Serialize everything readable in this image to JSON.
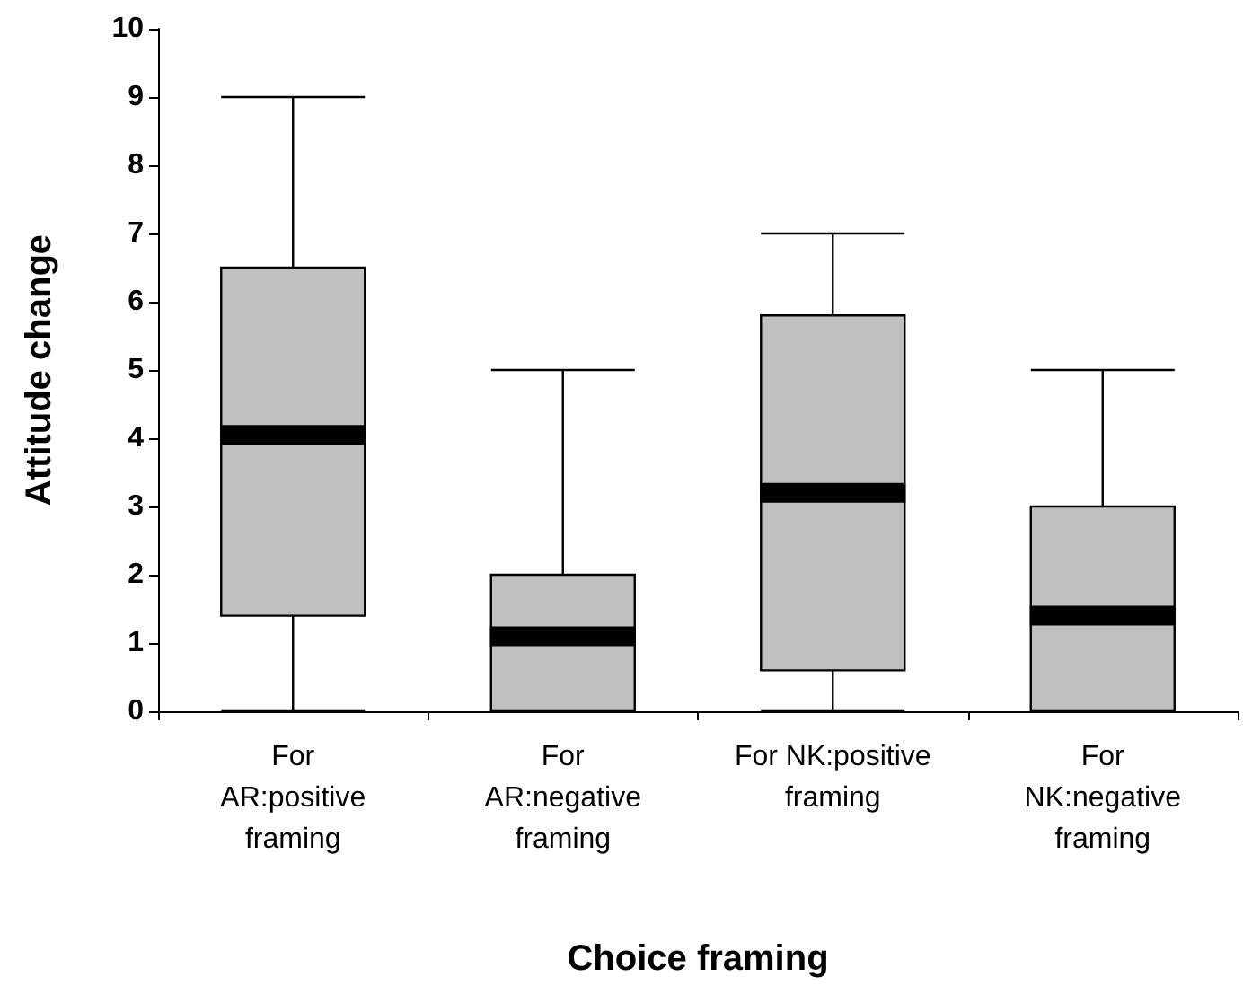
{
  "chart_data": {
    "type": "box",
    "xlabel": "Choice framing",
    "ylabel": "Attitude change",
    "categories": [
      "For\nAR:positive\nframing",
      "For\nAR:negative\nframing",
      "For NK:positive\nframing",
      "For\nNK:negative\nframing"
    ],
    "boxes": [
      {
        "low": 0,
        "q1": 1.4,
        "median": 4.05,
        "q3": 6.5,
        "high": 9
      },
      {
        "low": 0,
        "q1": 0,
        "median": 1.1,
        "q3": 2,
        "high": 5
      },
      {
        "low": 0,
        "q1": 0.6,
        "median": 3.2,
        "q3": 5.8,
        "high": 7
      },
      {
        "low": 0,
        "q1": 0,
        "median": 1.4,
        "q3": 3,
        "high": 5
      }
    ],
    "color": "#c0c0c0",
    "ylim": [
      0,
      10
    ],
    "yticks": [
      0,
      1,
      2,
      3,
      4,
      5,
      6,
      7,
      8,
      9,
      10
    ],
    "grid": false
  }
}
